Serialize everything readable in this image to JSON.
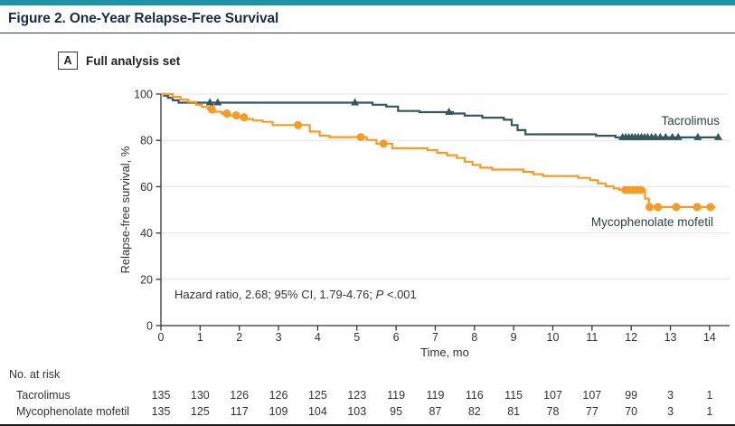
{
  "figure": {
    "title": "Figure 2. One-Year Relapse-Free Survival",
    "panel_label": "A",
    "panel_title": "Full analysis set",
    "accent_color": "#2191A7"
  },
  "chart_data": {
    "type": "line",
    "subtype": "kaplan-meier-step-function",
    "xlabel": "Time, mo",
    "ylabel": "Relapse-free survival, %",
    "xlim": [
      0,
      14.6
    ],
    "ylim": [
      0,
      100
    ],
    "x_ticks": [
      0,
      1,
      2,
      3,
      4,
      5,
      6,
      7,
      8,
      9,
      10,
      11,
      12,
      13,
      14
    ],
    "y_ticks": [
      0,
      20,
      40,
      60,
      80,
      100
    ],
    "grid": "horizontal",
    "grid_color": "#E4E4E4",
    "axis_color": "#333333",
    "legend_position": "curve-end-labels",
    "annotation": {
      "plain_part": "Hazard ratio, 2.68; 95% CI, 1.79-4.76; ",
      "italic_part": "P",
      "tail_part": " <.001"
    },
    "series": [
      {
        "name": "Tacrolimus",
        "color": "#35565E",
        "marker": "triangle",
        "steps": [
          [
            0,
            100
          ],
          [
            0.08,
            99.3
          ],
          [
            0.18,
            98.4
          ],
          [
            0.3,
            97.3
          ],
          [
            0.45,
            96.3
          ],
          [
            5.4,
            95.4
          ],
          [
            5.75,
            94.6
          ],
          [
            6.05,
            92.7
          ],
          [
            6.6,
            92.2
          ],
          [
            7.45,
            91.6
          ],
          [
            7.75,
            90.7
          ],
          [
            8.2,
            89.8
          ],
          [
            8.75,
            88.9
          ],
          [
            8.95,
            86.6
          ],
          [
            9.1,
            84.4
          ],
          [
            9.3,
            82.6
          ],
          [
            11.1,
            82
          ],
          [
            11.6,
            81.3
          ],
          [
            14.25,
            81.3
          ]
        ],
        "censor_times": [
          1.25,
          1.45,
          4.95,
          7.35,
          11.78,
          11.86,
          11.94,
          12.02,
          12.1,
          12.18,
          12.26,
          12.34,
          12.42,
          12.52,
          12.62,
          12.74,
          12.88,
          13.05,
          13.2,
          13.7,
          14.22
        ]
      },
      {
        "name": "Mycophenolate mofetil",
        "color": "#F59C24",
        "marker": "circle",
        "steps": [
          [
            0,
            100
          ],
          [
            0.3,
            98.8
          ],
          [
            0.5,
            97.6
          ],
          [
            0.7,
            96.6
          ],
          [
            0.9,
            95.4
          ],
          [
            1.05,
            94.4
          ],
          [
            1.2,
            93.4
          ],
          [
            1.35,
            92.4
          ],
          [
            1.55,
            91.6
          ],
          [
            1.75,
            90.8
          ],
          [
            1.95,
            90
          ],
          [
            2.15,
            89.2
          ],
          [
            2.35,
            88.6
          ],
          [
            2.6,
            88
          ],
          [
            2.85,
            86.6
          ],
          [
            3.8,
            83.8
          ],
          [
            4.05,
            82
          ],
          [
            4.3,
            81.4
          ],
          [
            5.25,
            80.2
          ],
          [
            5.5,
            78.6
          ],
          [
            5.9,
            76.6
          ],
          [
            6.8,
            75.8
          ],
          [
            7.05,
            74.6
          ],
          [
            7.3,
            73.6
          ],
          [
            7.55,
            72.4
          ],
          [
            7.75,
            70.8
          ],
          [
            7.95,
            69.4
          ],
          [
            8.15,
            68.2
          ],
          [
            8.45,
            67.4
          ],
          [
            9.25,
            66.4
          ],
          [
            9.5,
            65.4
          ],
          [
            9.75,
            64.6
          ],
          [
            10.65,
            63.8
          ],
          [
            10.95,
            62.8
          ],
          [
            11.15,
            61.4
          ],
          [
            11.35,
            60.2
          ],
          [
            11.55,
            59.2
          ],
          [
            11.7,
            58.6
          ],
          [
            12.35,
            54.8
          ],
          [
            12.45,
            51.2
          ],
          [
            14.15,
            51.2
          ]
        ],
        "censor_times": [
          1.3,
          1.68,
          1.92,
          2.12,
          3.5,
          5.1,
          5.68,
          11.85,
          11.95,
          12.05,
          12.15,
          12.25,
          12.47,
          12.68,
          13.15,
          13.68,
          14.02
        ]
      }
    ]
  },
  "risk_table": {
    "header": "No. at risk",
    "rows": [
      {
        "label": "Tacrolimus",
        "values": [
          135,
          130,
          126,
          126,
          125,
          123,
          119,
          119,
          116,
          115,
          107,
          107,
          99,
          3,
          1
        ]
      },
      {
        "label": "Mycophenolate mofetil",
        "values": [
          135,
          125,
          117,
          109,
          104,
          103,
          95,
          87,
          82,
          81,
          78,
          77,
          70,
          3,
          1
        ]
      }
    ]
  }
}
